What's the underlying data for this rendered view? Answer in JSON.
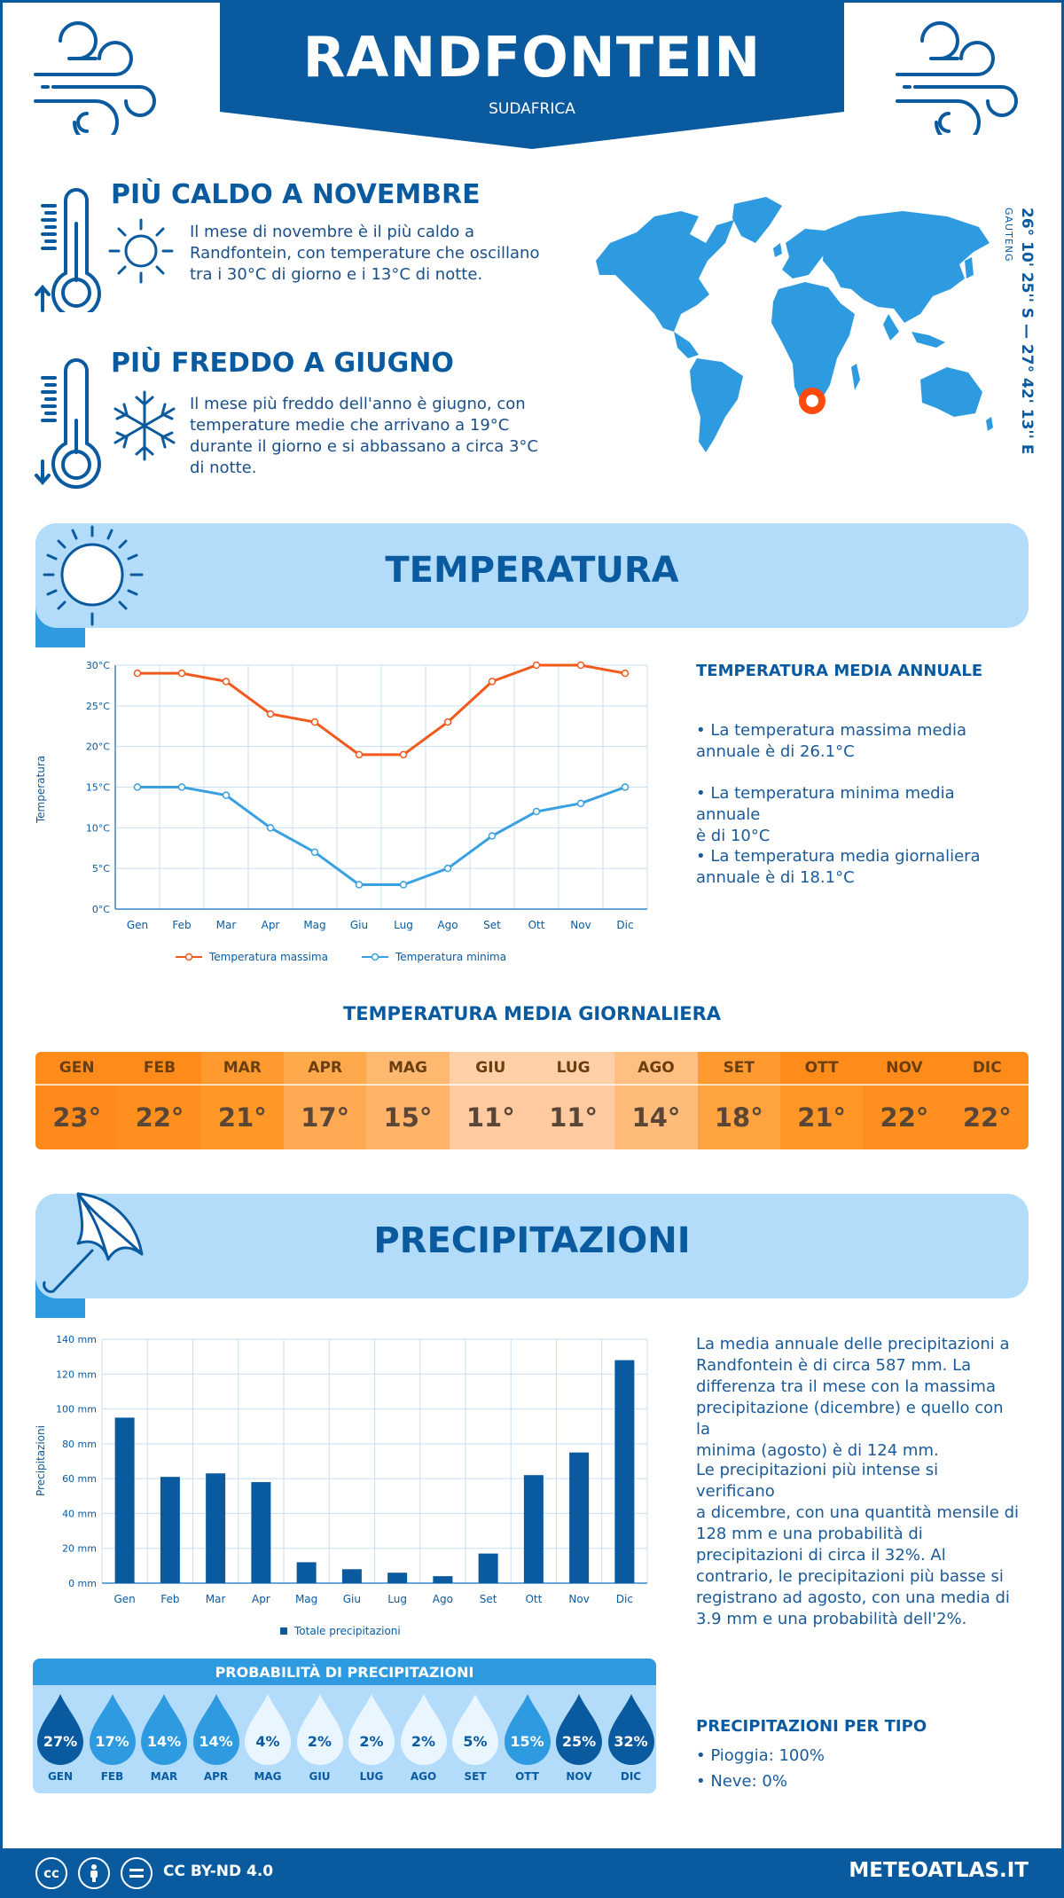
{
  "header": {
    "city": "RANDFONTEIN",
    "country": "SUDAFRICA"
  },
  "colors": {
    "primary": "#0a5aa0",
    "accent_blue": "#2e9be0",
    "light_blue": "#b3dcfb",
    "max_line": "#f05a1e",
    "min_line": "#3aa0e0",
    "marker": "#ff4a0e"
  },
  "hot": {
    "title": "PIÙ CALDO A NOVEMBRE",
    "lines": [
      "Il mese di novembre è il più caldo a",
      "Randfontein, con temperature che oscillano",
      "tra i 30°C di giorno e i 13°C di notte."
    ],
    "icons": [
      "thermometer-icon",
      "sun-icon"
    ]
  },
  "cold": {
    "title": "PIÙ FREDDO A GIUGNO",
    "lines": [
      "Il mese più freddo dell'anno è giugno, con",
      "temperature medie che arrivano a 19°C",
      "durante il giorno e si abbassano a circa 3°C",
      "di notte."
    ],
    "icons": [
      "thermometer-icon",
      "snowflake-icon"
    ]
  },
  "location": {
    "coords": "26° 10' 25'' S — 27° 42' 13'' E",
    "region": "GAUTENG"
  },
  "temperature_section": {
    "title": "TEMPERATURA",
    "annual_title": "TEMPERATURA MEDIA ANNUALE",
    "stats": [
      [
        "• La temperatura massima media",
        "annuale è di 26.1°C"
      ],
      [
        "• La temperatura minima media annuale",
        "è di 10°C"
      ],
      [
        "• La temperatura media giornaliera",
        "annuale è di 18.1°C"
      ]
    ]
  },
  "chart_data": [
    {
      "type": "line",
      "categories": [
        "Gen",
        "Feb",
        "Mar",
        "Apr",
        "Mag",
        "Giu",
        "Lug",
        "Ago",
        "Set",
        "Ott",
        "Nov",
        "Dic"
      ],
      "series": [
        {
          "name": "Temperatura massima",
          "values": [
            29,
            29,
            28,
            24,
            23,
            19,
            19,
            23,
            28,
            30,
            30,
            29
          ]
        },
        {
          "name": "Temperatura minima",
          "values": [
            15,
            15,
            14,
            10,
            7,
            3,
            3,
            5,
            9,
            12,
            13,
            15
          ]
        }
      ],
      "ylabel": "Temperatura",
      "yticks": [
        "0°C",
        "5°C",
        "10°C",
        "15°C",
        "20°C",
        "25°C",
        "30°C"
      ],
      "ylim": [
        0,
        30
      ],
      "grid": true,
      "legend": "bottom-center"
    },
    {
      "type": "bar",
      "categories": [
        "Gen",
        "Feb",
        "Mar",
        "Apr",
        "Mag",
        "Giu",
        "Lug",
        "Ago",
        "Set",
        "Ott",
        "Nov",
        "Dic"
      ],
      "series": [
        {
          "name": "Totale precipitazioni",
          "values": [
            95,
            61,
            63,
            58,
            12,
            8,
            6,
            4,
            17,
            62,
            75,
            128
          ]
        }
      ],
      "ylabel": "Precipitazioni",
      "yticks": [
        "0 mm",
        "20 mm",
        "40 mm",
        "60 mm",
        "80 mm",
        "100 mm",
        "120 mm",
        "140 mm"
      ],
      "ylim": [
        0,
        140
      ],
      "grid": true,
      "legend": "bottom-center"
    }
  ],
  "daily": {
    "title": "TEMPERATURA MEDIA GIORNALIERA",
    "months": [
      "GEN",
      "FEB",
      "MAR",
      "APR",
      "MAG",
      "GIU",
      "LUG",
      "AGO",
      "SET",
      "OTT",
      "NOV",
      "DIC"
    ],
    "values": [
      "23°",
      "22°",
      "21°",
      "17°",
      "15°",
      "11°",
      "11°",
      "14°",
      "18°",
      "21°",
      "22°",
      "22°"
    ],
    "head_colors": [
      "#ff8c1a",
      "#ff8c1a",
      "#ff9a2e",
      "#ffa94d",
      "#ffb870",
      "#ffd0a8",
      "#ffd0a8",
      "#ffbf80",
      "#ff9a2e",
      "#ff8c1a",
      "#ff8c1a",
      "#ff8c1a"
    ],
    "body_colors": [
      "#ff8a1c",
      "#ff901f",
      "#ff9826",
      "#ffaa52",
      "#ffb469",
      "#ffcaa0",
      "#ffcaa0",
      "#ffbb7a",
      "#ffa23f",
      "#ff9626",
      "#ff901f",
      "#ff901f"
    ]
  },
  "precip_section": {
    "title": "PRECIPITAZIONI",
    "para1": [
      "La media annuale delle precipitazioni a",
      "Randfontein è di circa 587 mm. La",
      "differenza tra il mese con la massima",
      "precipitazione (dicembre) e quello con la",
      "minima (agosto) è di 124 mm."
    ],
    "para2": [
      "Le precipitazioni più intense si verificano",
      "a dicembre, con una quantità mensile di",
      "128 mm e una probabilità di",
      "precipitazioni di circa il 32%. Al",
      "contrario, le precipitazioni più basse si",
      "registrano ad agosto, con una media di",
      "3.9 mm e una probabilità dell'2%."
    ]
  },
  "probability": {
    "title": "PROBABILITÀ DI PRECIPITAZIONI",
    "months": [
      "GEN",
      "FEB",
      "MAR",
      "APR",
      "MAG",
      "GIU",
      "LUG",
      "AGO",
      "SET",
      "OTT",
      "NOV",
      "DIC"
    ],
    "values": [
      "27%",
      "17%",
      "14%",
      "14%",
      "4%",
      "2%",
      "2%",
      "2%",
      "5%",
      "15%",
      "25%",
      "32%"
    ],
    "numeric": [
      27,
      17,
      14,
      14,
      4,
      2,
      2,
      2,
      5,
      15,
      25,
      32
    ]
  },
  "types": {
    "title": "PRECIPITAZIONI PER TIPO",
    "items": [
      "• Pioggia: 100%",
      "• Neve: 0%"
    ]
  },
  "footer": {
    "license": "CC BY-ND 4.0",
    "site": "METEOATLAS.IT",
    "icons": [
      "cc-icon",
      "by-icon",
      "nd-icon"
    ]
  }
}
